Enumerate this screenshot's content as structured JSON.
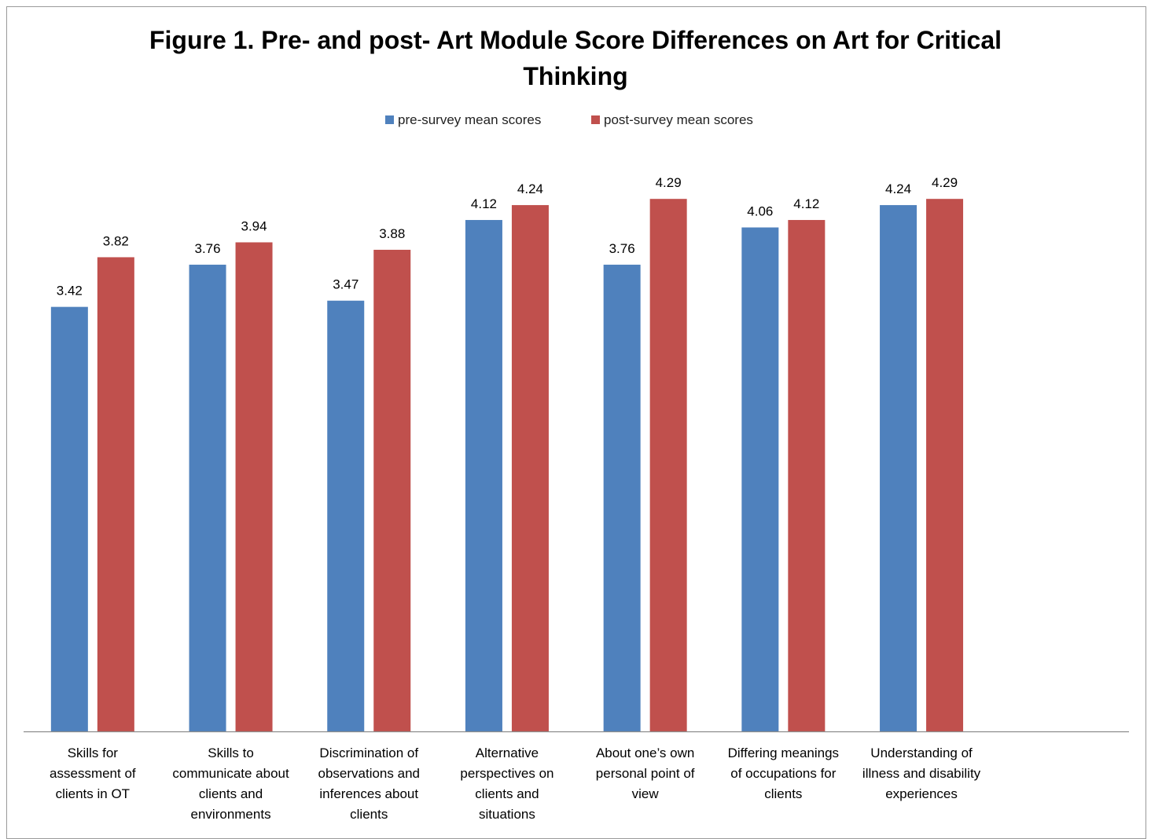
{
  "chart_data": {
    "type": "bar",
    "title_lines": [
      "Figure 1.  Pre- and post- Art Module Score Differences on Art for Critical",
      "Thinking"
    ],
    "categories": [
      [
        "Skills for",
        "assessment of",
        "clients in OT"
      ],
      [
        "Skills to",
        "communicate about",
        "clients and",
        "environments"
      ],
      [
        "Discrimination of",
        "observations and",
        "inferences about",
        "clients"
      ],
      [
        "Alternative",
        "perspectives on",
        "clients and",
        "situations"
      ],
      [
        "About one’s own",
        "personal point of",
        "view"
      ],
      [
        "Differing meanings",
        "of occupations for",
        "clients"
      ],
      [
        "Understanding of",
        "illness and disability",
        "experiences"
      ]
    ],
    "series": [
      {
        "name": "pre-survey mean scores",
        "color": "#4f81bd",
        "values": [
          3.42,
          3.76,
          3.47,
          4.12,
          3.76,
          4.06,
          4.24
        ]
      },
      {
        "name": "post-survey mean scores",
        "color": "#c0504d",
        "values": [
          3.82,
          3.94,
          3.88,
          4.24,
          4.29,
          4.12,
          4.29
        ]
      }
    ],
    "data_labels": [
      [
        "3.42",
        "3.76",
        "3.47",
        "4.12",
        "3.76",
        "4.06",
        "4.24"
      ],
      [
        "3.82",
        "3.94",
        "3.88",
        "4.24",
        "4.29",
        "4.12",
        "4.29"
      ]
    ],
    "ylim": [
      0,
      4.5
    ],
    "grid": false,
    "legend_position": "top"
  }
}
